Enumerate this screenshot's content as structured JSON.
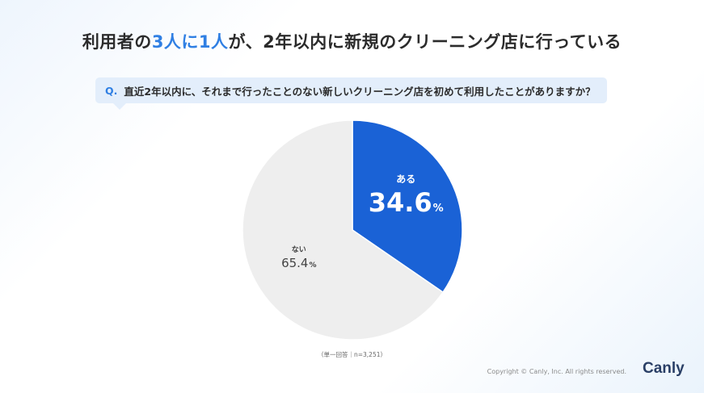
{
  "header": {
    "title_pre": "利用者の",
    "title_highlight": "3人に1人",
    "title_post": "が、2年以内に新規のクリーニング店に行っている"
  },
  "question": {
    "prefix": "Q.",
    "text": "直近2年以内に、それまで行ったことのない新しいクリーニング店を初めて利用したことがありますか？"
  },
  "chart_data": {
    "type": "pie",
    "title": "",
    "slices": [
      {
        "label": "ある",
        "value": 34.6,
        "display": "34.6",
        "unit": "%",
        "color": "#1a62d6"
      },
      {
        "label": "ない",
        "value": 65.4,
        "display": "65.4",
        "unit": "%",
        "color": "#eeeeee"
      }
    ],
    "start": "12 o'clock",
    "direction": "clockwise"
  },
  "footer": {
    "note": "（単一回答｜n=3,251）",
    "copyright": "Copyright © Canly, Inc. All rights reserved.",
    "logo": "Canly"
  },
  "colors": {
    "accent": "#2f7fe3",
    "primary_slice": "#1a62d6",
    "secondary_slice": "#eeeeee",
    "question_bg": "#e3eefb"
  }
}
